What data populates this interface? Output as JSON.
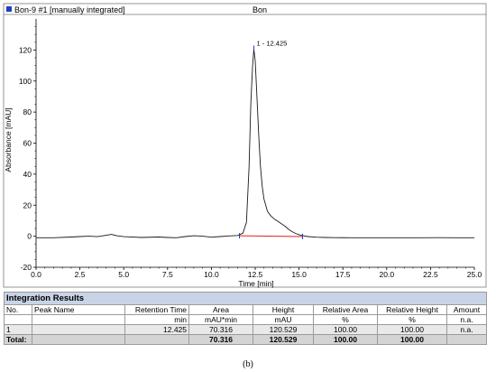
{
  "chart_data": {
    "type": "line",
    "header_left": "Bon-9 #1 [manually integrated]",
    "title": "Bon",
    "xlabel": "Time [min]",
    "ylabel": "Absorbance [mAU]",
    "xlim": [
      0.0,
      25.0
    ],
    "ylim": [
      -20,
      140
    ],
    "x_ticks": [
      "0.0",
      "2.5",
      "5.0",
      "7.5",
      "10.0",
      "12.5",
      "15.0",
      "17.5",
      "20.0",
      "22.5",
      "25.0"
    ],
    "y_ticks": [
      "-20",
      "0",
      "20",
      "40",
      "60",
      "80",
      "100",
      "120"
    ],
    "x_tick_values": [
      0,
      2.5,
      5,
      7.5,
      10,
      12.5,
      15,
      17.5,
      20,
      22.5,
      25
    ],
    "y_tick_values": [
      -20,
      0,
      20,
      40,
      60,
      80,
      100,
      120
    ],
    "series": [
      {
        "x": [
          0.0,
          1.0,
          2.0,
          2.5,
          3.0,
          3.5,
          4.0,
          4.3,
          4.6,
          5.0,
          6.0,
          7.0,
          7.5,
          8.0,
          8.5,
          9.0,
          9.5,
          10.0,
          10.5,
          11.0,
          11.5,
          11.8,
          12.0,
          12.15,
          12.25,
          12.35,
          12.425,
          12.5,
          12.6,
          12.7,
          12.8,
          12.9,
          13.0,
          13.2,
          13.4,
          13.6,
          13.8,
          14.0,
          14.2,
          14.4,
          14.6,
          14.8,
          15.0,
          15.2,
          15.5,
          16.0,
          16.5,
          17.0,
          18.0,
          19.0,
          20.0,
          21.0,
          22.0,
          23.0,
          24.0,
          25.0
        ],
        "y": [
          -1.0,
          -1.0,
          -0.5,
          -0.2,
          0.0,
          -0.3,
          0.6,
          1.2,
          0.3,
          -0.3,
          -0.8,
          -0.5,
          -0.8,
          -1.0,
          -0.2,
          0.3,
          0.0,
          -0.6,
          -0.2,
          0.2,
          0.5,
          2.0,
          9.0,
          45.0,
          85.0,
          110.0,
          120.5,
          113.0,
          90.0,
          65.0,
          45.0,
          32.0,
          24.0,
          16.0,
          13.0,
          11.0,
          9.5,
          8.0,
          6.5,
          4.5,
          3.0,
          1.8,
          1.0,
          0.4,
          -0.2,
          -0.6,
          -0.8,
          -0.9,
          -1.0,
          -1.0,
          -1.0,
          -1.0,
          -1.0,
          -0.9,
          -1.0,
          -1.0
        ]
      }
    ],
    "baseline": {
      "x": [
        11.6,
        15.2
      ],
      "y": [
        0.3,
        -0.2
      ]
    },
    "peak_label": "1 - 12.425",
    "peak": {
      "x": 12.425,
      "y": 120.529
    },
    "grid": false,
    "integration": {
      "title": "Integration Results",
      "header1": [
        "No.",
        "Peak Name",
        "Retention Time",
        "Area",
        "Height",
        "Relative Area",
        "Relative Height",
        "Amount"
      ],
      "header2": [
        "",
        "",
        "min",
        "mAU*min",
        "mAU",
        "%",
        "%",
        "n.a."
      ],
      "row": [
        "1",
        "",
        "12.425",
        "70.316",
        "120.529",
        "100.00",
        "100.00",
        "n.a."
      ],
      "total": [
        "Total:",
        "",
        "",
        "70.316",
        "120.529",
        "100.00",
        "100.00",
        ""
      ]
    }
  },
  "caption": "(b)",
  "colors": {
    "trace": "#1a1a1a",
    "baseline": "#e02020",
    "marker": "#1f3fbf",
    "table_title_bg": "#c8d3e6",
    "table_total_bg": "#d4d4d4"
  }
}
